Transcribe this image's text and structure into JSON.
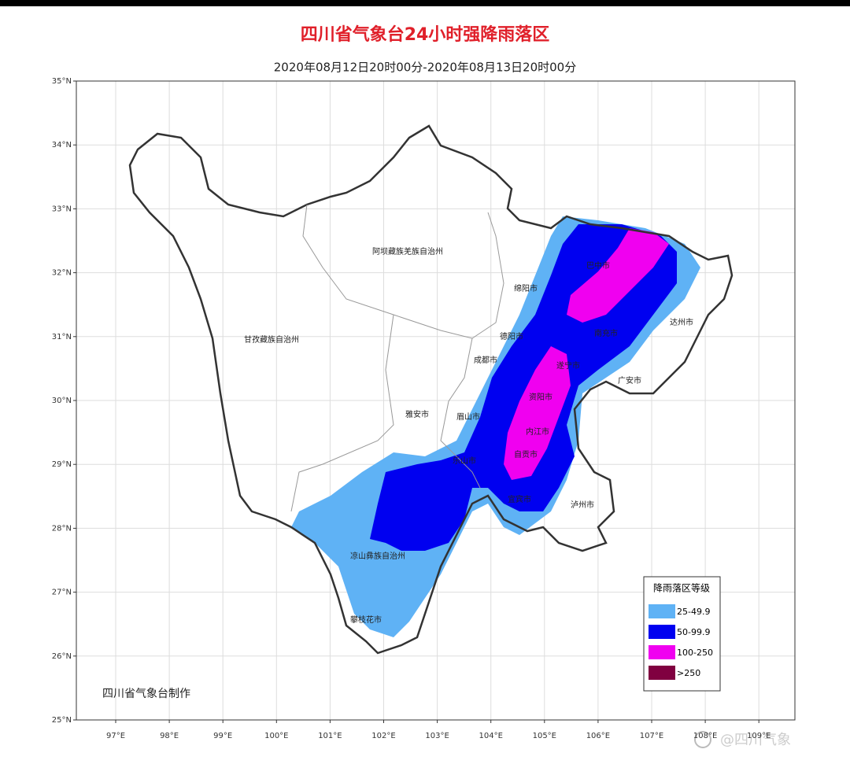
{
  "header": {
    "title": "四川省气象台24小时强降雨落区",
    "subtitle": "2020年08月12日20时00分-2020年08月13日20时00分"
  },
  "map": {
    "lat_ticks": [
      {
        "value": 35,
        "label": "35°N"
      },
      {
        "value": 34,
        "label": "34°N"
      },
      {
        "value": 33,
        "label": "33°N"
      },
      {
        "value": 32,
        "label": "32°N"
      },
      {
        "value": 31,
        "label": "31°N"
      },
      {
        "value": 30,
        "label": "30°N"
      },
      {
        "value": 29,
        "label": "29°N"
      },
      {
        "value": 28,
        "label": "28°N"
      },
      {
        "value": 27,
        "label": "27°N"
      },
      {
        "value": 26,
        "label": "26°N"
      },
      {
        "value": 25,
        "label": "25°N"
      }
    ],
    "lon_ticks": [
      {
        "value": 97,
        "label": "97°E"
      },
      {
        "value": 98,
        "label": "98°E"
      },
      {
        "value": 99,
        "label": "99°E"
      },
      {
        "value": 100,
        "label": "100°E"
      },
      {
        "value": 101,
        "label": "101°E"
      },
      {
        "value": 102,
        "label": "102°E"
      },
      {
        "value": 103,
        "label": "103°E"
      },
      {
        "value": 104,
        "label": "104°E"
      },
      {
        "value": 105,
        "label": "105°E"
      },
      {
        "value": 106,
        "label": "106°E"
      },
      {
        "value": 107,
        "label": "107°E"
      },
      {
        "value": 108,
        "label": "108°E"
      },
      {
        "value": 109,
        "label": "109°E"
      }
    ],
    "regions": [
      "阿坝藏族羌族自治州",
      "甘孜藏族自治州",
      "绵阳市",
      "巴中市",
      "达州市",
      "德阳市",
      "南充市",
      "成都市",
      "遂宁市",
      "广安市",
      "资阳市",
      "雅安市",
      "眉山市",
      "内江市",
      "乐山市",
      "自贡市",
      "宜宾市",
      "泸州市",
      "凉山彝族自治州",
      "攀枝花市"
    ]
  },
  "legend": {
    "title": "降雨落区等级",
    "items": [
      {
        "label": "25-49.9",
        "color": "#5fb2f5"
      },
      {
        "label": "50-99.9",
        "color": "#0000f0"
      },
      {
        "label": "100-250",
        "color": "#f000f0"
      },
      {
        "label": ">250",
        "color": "#800040"
      }
    ]
  },
  "footer": {
    "credit": "四川省气象台制作",
    "watermark": "@四川气象"
  }
}
